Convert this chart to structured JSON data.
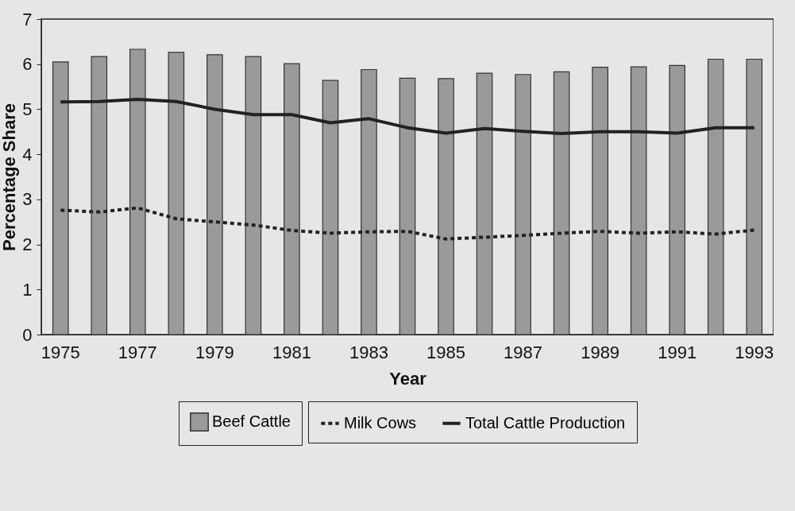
{
  "chart_data": {
    "type": "bar",
    "xlabel": "Year",
    "ylabel": "Percentage Share",
    "categories": [
      "1975",
      null,
      "1977",
      null,
      "1979",
      null,
      "1981",
      null,
      "1983",
      null,
      "1985",
      null,
      "1987",
      null,
      "1989",
      null,
      "1991",
      null,
      "1993"
    ],
    "series": [
      {
        "name": "Beef Cattle",
        "color": "#9a9a9a",
        "values": [
          6.05,
          6.17,
          6.33,
          6.26,
          6.21,
          6.17,
          6.01,
          5.64,
          5.88,
          5.69,
          5.68,
          5.8,
          5.77,
          5.83,
          5.93,
          5.94,
          5.97,
          6.11,
          6.11
        ]
      },
      {
        "name": "Milk Cows",
        "type": "line",
        "line_style": "dotted",
        "color": "#222222",
        "values": [
          2.76,
          2.72,
          2.81,
          2.57,
          2.5,
          2.43,
          2.31,
          2.25,
          2.28,
          2.29,
          2.12,
          2.16,
          2.2,
          2.25,
          2.29,
          2.25,
          2.28,
          2.23,
          2.32
        ]
      },
      {
        "name": "Total Cattle Production",
        "type": "line",
        "line_style": "solid",
        "color": "#222222",
        "values": [
          5.16,
          5.17,
          5.22,
          5.17,
          5.0,
          4.88,
          4.88,
          4.7,
          4.79,
          4.59,
          4.47,
          4.57,
          4.51,
          4.46,
          4.5,
          4.5,
          4.47,
          4.59,
          4.59
        ]
      }
    ],
    "ylim": [
      0,
      7
    ],
    "yticks": [
      0,
      1,
      2,
      3,
      4,
      5,
      6,
      7
    ],
    "grid": false,
    "legend": "bottom"
  }
}
